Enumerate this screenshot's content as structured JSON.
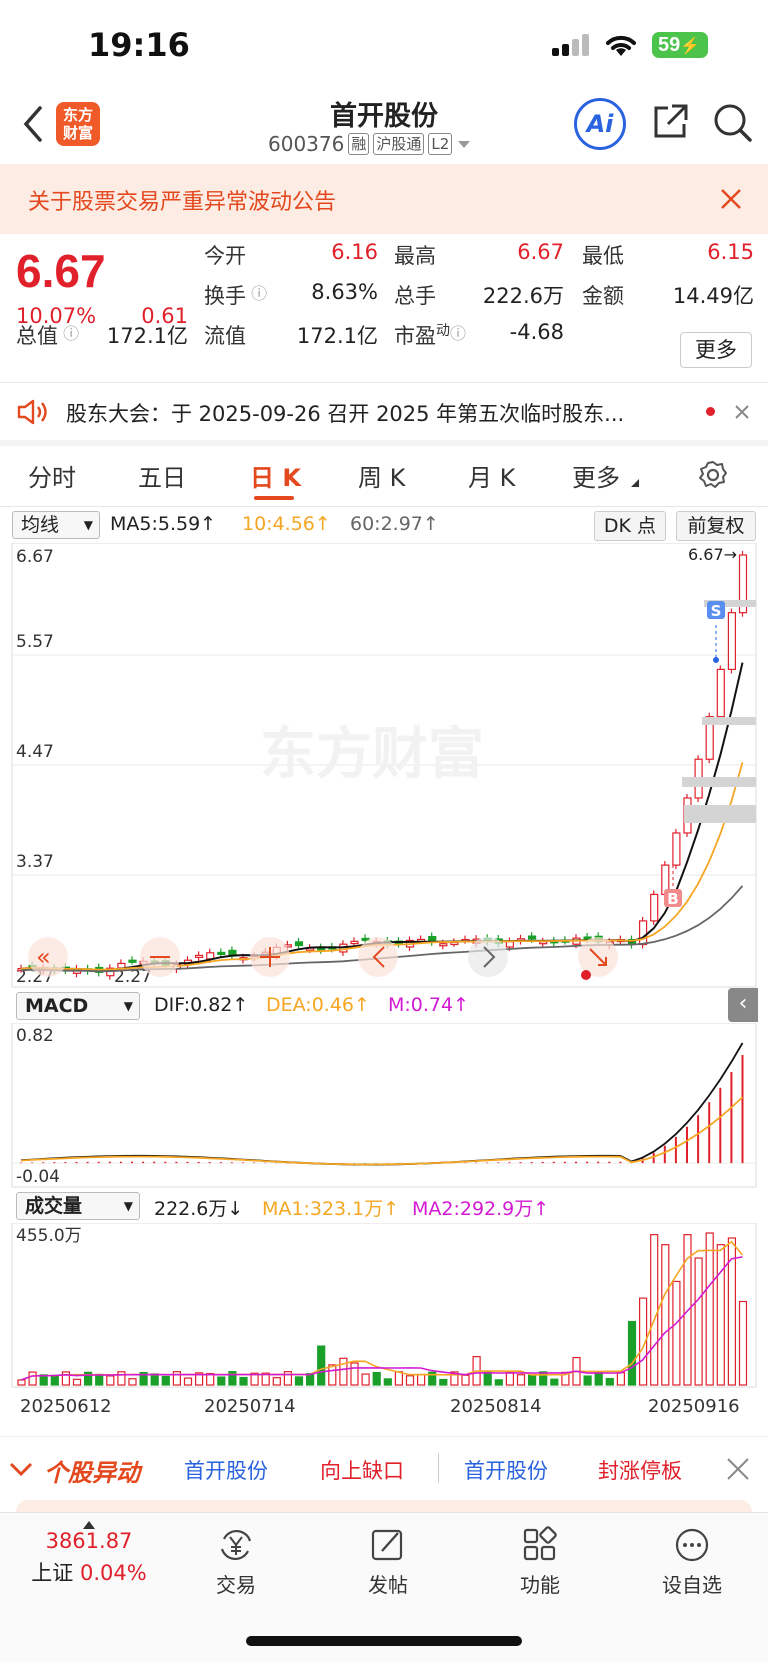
{
  "status": {
    "time": "19:16",
    "battery": "59"
  },
  "header": {
    "title": "首开股份",
    "code": "600376",
    "tags": [
      "融",
      "沪股通",
      "L2"
    ],
    "logo_line1": "东方",
    "logo_line2": "财富",
    "ai_label": "Ai"
  },
  "notice": {
    "text": "关于股票交易严重异常波动公告"
  },
  "quote": {
    "price": "6.67",
    "change_pct": "10.07%",
    "change": "0.61",
    "open_label": "今开",
    "open": "6.16",
    "high_label": "最高",
    "high": "6.67",
    "low_label": "最低",
    "low": "6.15",
    "turnover_label": "换手",
    "turnover": "8.63%",
    "volume_label": "总手",
    "volume": "222.6万",
    "amount_label": "金额",
    "amount": "14.49亿",
    "mcap_label": "总值",
    "mcap": "172.1亿",
    "float_label": "流值",
    "float_cap": "172.1亿",
    "pe_label": "市盈",
    "pe_sup": "动",
    "pe": "-4.68",
    "more_label": "更多"
  },
  "ticker": {
    "text": "股东大会：于 2025-09-26 召开 2025 年第五次临时股东..."
  },
  "tabs": [
    {
      "label": "分时"
    },
    {
      "label": "五日"
    },
    {
      "label": "日 K"
    },
    {
      "label": "周 K"
    },
    {
      "label": "月 K"
    },
    {
      "label": "更多"
    }
  ],
  "kline": {
    "indicator": "均线",
    "ma5": "MA5:5.59↑",
    "ma10": "10:4.56↑",
    "ma60": "60:2.97↑",
    "dk_label": "DK 点",
    "adjust_label": "前复权",
    "y_labels": [
      "6.67",
      "5.57",
      "4.47",
      "3.37"
    ],
    "low_mark": "2.27",
    "low_mark2": "2.27",
    "high_mark": "6.67→",
    "watermark": "东方财富",
    "s_mark": "S",
    "b_mark": "B"
  },
  "macd": {
    "indicator": "MACD",
    "dif": "DIF:0.82↑",
    "dea": "DEA:0.46↑",
    "m": "M:0.74↑",
    "y_top": "0.82",
    "y_bottom": "-0.04"
  },
  "volume": {
    "indicator": "成交量",
    "vol": "222.6万↓",
    "ma1": "MA1:323.1万↑",
    "ma2": "MA2:292.9万↑",
    "y_top": "455.0万"
  },
  "dates": [
    "20250612",
    "20250714",
    "20250814",
    "20250916"
  ],
  "strip": {
    "brand": "个股异动",
    "item1": "首开股份",
    "item2": "向上缺口",
    "item3": "首开股份",
    "item4": "封涨停板"
  },
  "nav": {
    "index_value": "3861.87",
    "index_name": "上证",
    "index_change": "0.04%",
    "items": [
      {
        "label": "交易"
      },
      {
        "label": "发帖"
      },
      {
        "label": "功能"
      },
      {
        "label": "设自选"
      }
    ]
  },
  "colors": {
    "up": "#e0202a",
    "down": "#1aa029",
    "accent": "#e4481e",
    "ma10": "#f5a623",
    "ma60": "#666666",
    "magenta": "#d21ad2"
  }
}
